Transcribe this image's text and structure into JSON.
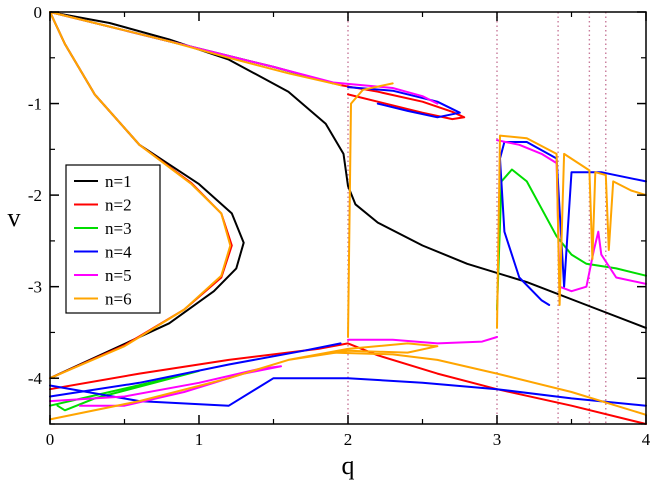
{
  "chart_data": {
    "type": "line",
    "title": "",
    "xlabel": "q",
    "ylabel": "v",
    "xlim": [
      0,
      4
    ],
    "ylim": [
      -4.5,
      0
    ],
    "x_ticks": [
      0,
      1,
      2,
      3,
      4
    ],
    "y_ticks": [
      0,
      -1,
      -2,
      -3,
      -4
    ],
    "x_tick_labels": [
      "0",
      "1",
      "2",
      "3",
      "4"
    ],
    "y_tick_labels": [
      "0",
      "-1",
      "-2",
      "-3",
      "-4"
    ],
    "grid": false,
    "legend_position": "left",
    "vertical_reference_lines": {
      "color": "#c87a9a",
      "style": "dotted",
      "x": [
        2.0,
        3.0,
        3.41,
        3.62,
        3.73
      ]
    },
    "series": [
      {
        "name": "n=1",
        "color": "#000000",
        "segments": [
          [
            [
              0,
              0
            ],
            [
              0.4,
              -0.12
            ],
            [
              0.8,
              -0.3
            ],
            [
              1.2,
              -0.52
            ],
            [
              1.6,
              -0.87
            ],
            [
              1.85,
              -1.22
            ],
            [
              1.97,
              -1.55
            ],
            [
              2.0,
              -1.9
            ],
            [
              2.05,
              -2.1
            ],
            [
              2.2,
              -2.3
            ],
            [
              2.5,
              -2.55
            ],
            [
              2.8,
              -2.75
            ],
            [
              3.2,
              -2.95
            ],
            [
              3.6,
              -3.2
            ],
            [
              4.0,
              -3.45
            ]
          ],
          [
            [
              0,
              -4.0
            ],
            [
              0.4,
              -3.7
            ],
            [
              0.8,
              -3.4
            ],
            [
              1.1,
              -3.05
            ],
            [
              1.25,
              -2.8
            ],
            [
              1.3,
              -2.52
            ],
            [
              1.22,
              -2.2
            ],
            [
              1.0,
              -1.88
            ],
            [
              0.6,
              -1.45
            ],
            [
              0.3,
              -0.9
            ],
            [
              0.1,
              -0.35
            ],
            [
              0,
              0
            ]
          ]
        ]
      },
      {
        "name": "n=2",
        "color": "#ff0000",
        "segments": [
          [
            [
              0,
              0
            ],
            [
              0.5,
              -0.2
            ],
            [
              1.0,
              -0.4
            ],
            [
              1.5,
              -0.6
            ],
            [
              1.95,
              -0.8
            ],
            [
              2.2,
              -0.87
            ],
            [
              2.5,
              -0.98
            ],
            [
              2.7,
              -1.09
            ],
            [
              2.78,
              -1.15
            ],
            [
              2.7,
              -1.17
            ],
            [
              2.5,
              -1.1
            ],
            [
              2.2,
              -0.98
            ],
            [
              2.0,
              -0.9
            ]
          ],
          [
            [
              0,
              -4.0
            ],
            [
              0.5,
              -3.64
            ],
            [
              0.9,
              -3.25
            ],
            [
              1.15,
              -2.9
            ],
            [
              1.22,
              -2.55
            ],
            [
              1.15,
              -2.2
            ],
            [
              0.95,
              -1.87
            ],
            [
              0.6,
              -1.45
            ],
            [
              0.3,
              -0.9
            ],
            [
              0.1,
              -0.35
            ],
            [
              0,
              0
            ]
          ],
          [
            [
              0,
              -4.12
            ],
            [
              0.6,
              -3.95
            ],
            [
              1.2,
              -3.8
            ],
            [
              1.8,
              -3.68
            ],
            [
              2.0,
              -3.62
            ],
            [
              2.2,
              -3.75
            ],
            [
              2.6,
              -3.95
            ],
            [
              3.0,
              -4.12
            ],
            [
              3.5,
              -4.3
            ],
            [
              4.0,
              -4.5
            ]
          ]
        ]
      },
      {
        "name": "n=3",
        "color": "#00dd00",
        "segments": [
          [
            [
              0,
              0
            ],
            [
              0.5,
              -0.2
            ],
            [
              1.0,
              -0.4
            ],
            [
              1.5,
              -0.6
            ],
            [
              1.9,
              -0.78
            ]
          ],
          [
            [
              3.0,
              -3.25
            ],
            [
              3.03,
              -1.85
            ],
            [
              3.1,
              -1.72
            ],
            [
              3.2,
              -1.85
            ],
            [
              3.3,
              -2.15
            ],
            [
              3.4,
              -2.45
            ],
            [
              3.5,
              -2.65
            ],
            [
              3.6,
              -2.75
            ],
            [
              3.8,
              -2.8
            ],
            [
              4.0,
              -2.88
            ]
          ],
          [
            [
              0,
              -4.3
            ],
            [
              0.4,
              -4.15
            ],
            [
              0.8,
              -4.0
            ],
            [
              1.0,
              -3.92
            ],
            [
              0.7,
              -4.05
            ],
            [
              0.3,
              -4.22
            ],
            [
              0.1,
              -4.35
            ],
            [
              0.05,
              -4.3
            ]
          ]
        ]
      },
      {
        "name": "n=4",
        "color": "#0000ff",
        "segments": [
          [
            [
              2.0,
              -0.82
            ],
            [
              2.3,
              -0.86
            ],
            [
              2.6,
              -0.98
            ],
            [
              2.75,
              -1.1
            ],
            [
              2.6,
              -1.15
            ],
            [
              2.4,
              -1.08
            ],
            [
              2.2,
              -1.0
            ]
          ],
          [
            [
              3.35,
              -3.2
            ],
            [
              3.3,
              -3.15
            ],
            [
              3.15,
              -2.9
            ],
            [
              3.05,
              -2.4
            ],
            [
              3.02,
              -1.6
            ],
            [
              3.05,
              -1.42
            ],
            [
              3.2,
              -1.42
            ],
            [
              3.4,
              -1.6
            ],
            [
              3.45,
              -3.0
            ],
            [
              3.5,
              -1.75
            ],
            [
              3.7,
              -1.75
            ],
            [
              4.0,
              -1.85
            ]
          ],
          [
            [
              0,
              -4.2
            ],
            [
              0.6,
              -4.05
            ],
            [
              1.2,
              -3.85
            ],
            [
              1.7,
              -3.7
            ],
            [
              1.95,
              -3.62
            ]
          ],
          [
            [
              0,
              -4.08
            ],
            [
              0.6,
              -4.25
            ],
            [
              1.2,
              -4.3
            ],
            [
              1.4,
              -4.1
            ],
            [
              1.5,
              -4.0
            ],
            [
              2.0,
              -4.0
            ],
            [
              2.5,
              -4.05
            ],
            [
              3.0,
              -4.12
            ],
            [
              3.5,
              -4.22
            ],
            [
              4.0,
              -4.3
            ]
          ]
        ]
      },
      {
        "name": "n=5",
        "color": "#ff00ff",
        "segments": [
          [
            [
              0,
              0
            ],
            [
              0.5,
              -0.2
            ],
            [
              1.0,
              -0.4
            ],
            [
              1.5,
              -0.6
            ],
            [
              1.9,
              -0.77
            ],
            [
              2.1,
              -0.8
            ],
            [
              2.3,
              -0.83
            ],
            [
              2.5,
              -0.92
            ],
            [
              2.6,
              -1.0
            ]
          ],
          [
            [
              3.0,
              -1.4
            ],
            [
              3.15,
              -1.45
            ],
            [
              3.3,
              -1.55
            ],
            [
              3.4,
              -1.65
            ],
            [
              3.42,
              -3.0
            ],
            [
              3.5,
              -3.05
            ],
            [
              3.6,
              -3.0
            ],
            [
              3.65,
              -2.6
            ],
            [
              3.68,
              -2.4
            ],
            [
              3.7,
              -2.65
            ],
            [
              3.8,
              -2.9
            ],
            [
              4.0,
              -2.97
            ]
          ],
          [
            [
              0,
              -4.25
            ],
            [
              0.5,
              -4.2
            ],
            [
              1.0,
              -4.05
            ],
            [
              1.4,
              -3.9
            ],
            [
              1.55,
              -3.87
            ],
            [
              1.3,
              -3.95
            ],
            [
              0.9,
              -4.15
            ],
            [
              0.5,
              -4.3
            ],
            [
              0.2,
              -4.3
            ]
          ],
          [
            [
              2.0,
              -3.58
            ],
            [
              2.3,
              -3.58
            ],
            [
              2.6,
              -3.62
            ],
            [
              2.9,
              -3.6
            ],
            [
              3.0,
              -3.55
            ]
          ]
        ]
      },
      {
        "name": "n=6",
        "color": "#ffa500",
        "segments": [
          [
            [
              0,
              0
            ],
            [
              0.4,
              -0.16
            ],
            [
              0.8,
              -0.32
            ],
            [
              1.2,
              -0.5
            ],
            [
              1.6,
              -0.67
            ],
            [
              1.95,
              -0.8
            ]
          ],
          [
            [
              2.0,
              -3.55
            ],
            [
              2.02,
              -1.0
            ],
            [
              2.1,
              -0.85
            ],
            [
              2.3,
              -0.78
            ]
          ],
          [
            [
              3.0,
              -3.45
            ],
            [
              3.02,
              -1.35
            ],
            [
              3.2,
              -1.38
            ],
            [
              3.4,
              -1.55
            ],
            [
              3.42,
              -3.2
            ],
            [
              3.45,
              -1.55
            ],
            [
              3.62,
              -1.73
            ],
            [
              3.64,
              -2.7
            ],
            [
              3.66,
              -1.75
            ],
            [
              3.73,
              -1.78
            ],
            [
              3.75,
              -2.6
            ],
            [
              3.78,
              -1.85
            ],
            [
              3.9,
              -1.95
            ],
            [
              4.0,
              -2.0
            ]
          ],
          [
            [
              0,
              -4.0
            ],
            [
              0.5,
              -3.65
            ],
            [
              0.9,
              -3.25
            ],
            [
              1.15,
              -2.88
            ],
            [
              1.21,
              -2.55
            ],
            [
              1.15,
              -2.2
            ],
            [
              0.95,
              -1.88
            ],
            [
              0.6,
              -1.45
            ],
            [
              0.3,
              -0.9
            ],
            [
              0.1,
              -0.35
            ],
            [
              0,
              0
            ]
          ],
          [
            [
              0,
              -4.45
            ],
            [
              0.6,
              -4.25
            ],
            [
              1.2,
              -4.0
            ],
            [
              1.6,
              -3.8
            ],
            [
              2.0,
              -3.68
            ],
            [
              2.4,
              -3.62
            ],
            [
              2.6,
              -3.65
            ],
            [
              2.4,
              -3.72
            ],
            [
              2.0,
              -3.7
            ],
            [
              1.6,
              -3.8
            ]
          ],
          [
            [
              1.9,
              -3.72
            ],
            [
              2.3,
              -3.74
            ],
            [
              2.6,
              -3.8
            ],
            [
              3.0,
              -3.95
            ],
            [
              3.5,
              -4.15
            ],
            [
              4.0,
              -4.4
            ]
          ]
        ]
      }
    ]
  }
}
